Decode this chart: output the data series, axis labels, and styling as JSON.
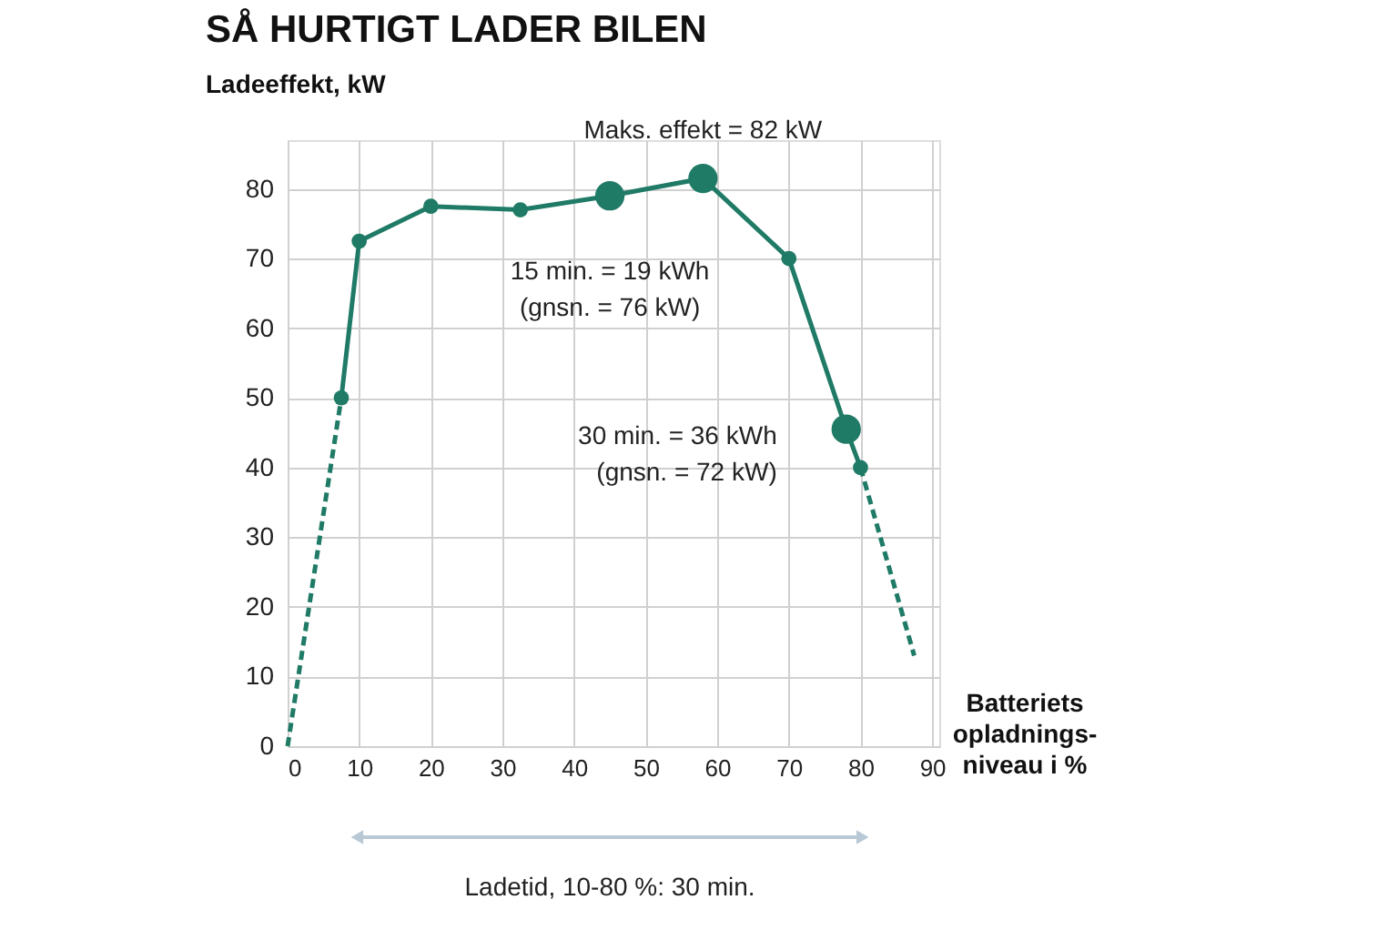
{
  "chart_data": {
    "type": "line",
    "title": "SÅ HURTIGT LADER BILEN",
    "ylabel": "Ladeeffekt, kW",
    "xlabel": "Batteriets\nopladnings-\nniveau i %",
    "xlim": [
      0,
      91
    ],
    "xticks": [
      0,
      10,
      20,
      30,
      40,
      50,
      60,
      70,
      80,
      90
    ],
    "ylim": [
      0,
      87
    ],
    "yticks": [
      0,
      10,
      20,
      30,
      40,
      50,
      60,
      70,
      80
    ],
    "grid": true,
    "series": [
      {
        "type": "line",
        "color": "#1f7a66",
        "marker": "circle",
        "line_style": "solid",
        "x": [
          7.5,
          10,
          20,
          32.5,
          45,
          58,
          70,
          78,
          80
        ],
        "values": [
          50,
          72.5,
          77.5,
          77,
          79,
          81.5,
          70,
          45.5,
          40
        ]
      },
      {
        "type": "line",
        "color": "#1f7a66",
        "marker": "none",
        "line_style": "dashed",
        "x": [
          0,
          7.5
        ],
        "values": [
          0,
          50
        ]
      },
      {
        "type": "line",
        "color": "#1f7a66",
        "marker": "none",
        "line_style": "dashed",
        "x": [
          80,
          87.5
        ],
        "values": [
          40,
          13
        ]
      },
      {
        "type": "scatter",
        "color": "#1f7a66",
        "marker": "circle",
        "x": [
          45,
          58,
          78
        ],
        "values": [
          79,
          81.5,
          45.5
        ]
      }
    ],
    "annotations": [
      {
        "text": "Maks. effekt = 82 kW",
        "x": 58,
        "y": 81.5
      },
      {
        "text": "15 min. = 19 kWh\n(gnsn. = 76 kW)",
        "x": 45,
        "y": 79
      },
      {
        "text": "30 min. = 36 kWh\n(gnsn. = 72 kW)",
        "x": 78,
        "y": 45.5
      },
      "Ladetid, 10-80 %: 30 min."
    ]
  }
}
